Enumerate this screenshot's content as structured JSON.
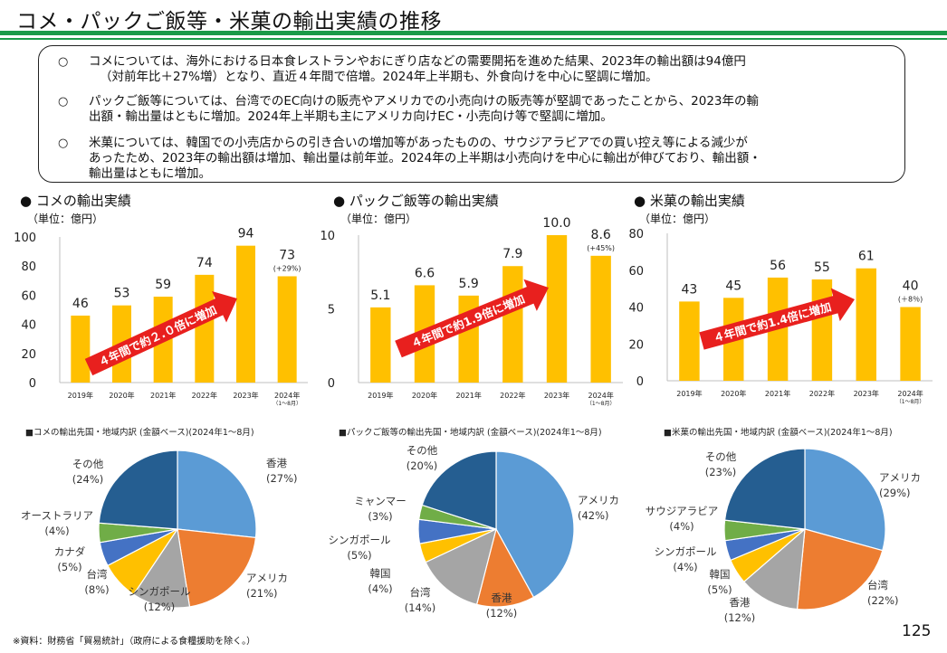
{
  "page": {
    "title": "コメ・パックご飯等・米菓の輸出実績の推移",
    "page_number": "125",
    "footer": "※資料：財務省「貿易統計」（政府による食糧援助を除く。）"
  },
  "bullets": [
    {
      "mark": "○",
      "lines": [
        "コメについては、海外における日本食レストランやおにぎり店などの需要開拓を進めた結果、2023年の輸出額は94億円",
        "（対前年比＋27%増）となり、直近４年間で倍増。2024年上半期も、外食向けを中心に堅調に増加。"
      ]
    },
    {
      "mark": "○",
      "lines": [
        "パックご飯等については、台湾でのEC向けの販売やアメリカでの小売向けの販売等が堅調であったことから、2023年の輸",
        "出額・輸出量はともに増加。2024年上半期も主にアメリカ向けEC・小売向け等で堅調に増加。"
      ]
    },
    {
      "mark": "○",
      "lines": [
        "米菓については、韓国での小売店からの引き合いの増加等があったものの、サウジアラビアでの買い控え等による減少が",
        "あったため、2023年の輸出額は増加、輸出量は前年並。2024年の上半期は小売向けを中心に輸出が伸びており、輸出額・",
        "輸出量はともに増加。"
      ]
    }
  ],
  "colors": {
    "bar": "#ffc000",
    "arrow": "#e8201e",
    "rule": "#1a9a48"
  },
  "chart_data": [
    {
      "type": "bar",
      "title": "● コメの輸出実績",
      "unit": "（単位：億円）",
      "categories": [
        "2019年",
        "2020年",
        "2021年",
        "2022年",
        "2023年",
        "2024年"
      ],
      "last_category_note": "（1～8月）",
      "values": [
        46,
        53,
        59,
        74,
        94,
        73
      ],
      "value_labels": [
        "46",
        "53",
        "59",
        "74",
        "94",
        "73"
      ],
      "last_value_note": "(+29%)",
      "yticks": [
        0,
        20,
        40,
        60,
        80,
        100
      ],
      "ylim": [
        0,
        100
      ],
      "arrow_label": "４年間で約２.０倍に増加"
    },
    {
      "type": "bar",
      "title": "● パックご飯等の輸出実績",
      "unit": "（単位：億円）",
      "categories": [
        "2019年",
        "2020年",
        "2021年",
        "2022年",
        "2023年",
        "2024年"
      ],
      "last_category_note": "（1～8月）",
      "values": [
        5.1,
        6.6,
        5.9,
        7.9,
        10.0,
        8.6
      ],
      "value_labels": [
        "5.1",
        "6.6",
        "5.9",
        "7.9",
        "10.0",
        "8.6"
      ],
      "last_value_note": "(+45%)",
      "yticks": [
        0,
        5,
        10
      ],
      "ylim": [
        0,
        10
      ],
      "arrow_label": "４年間で約1.9倍に増加"
    },
    {
      "type": "bar",
      "title": "● 米菓の輸出実績",
      "unit": "（単位：億円）",
      "categories": [
        "2019年",
        "2020年",
        "2021年",
        "2022年",
        "2023年",
        "2024年"
      ],
      "last_category_note": "（1～8月）",
      "values": [
        43,
        45,
        56,
        55,
        61,
        40
      ],
      "value_labels": [
        "43",
        "45",
        "56",
        "55",
        "61",
        "40"
      ],
      "last_value_note": "(＋8％)",
      "yticks": [
        0,
        20,
        40,
        60,
        80
      ],
      "ylim": [
        0,
        80
      ],
      "arrow_label": "４年間で約1.4倍に増加"
    },
    {
      "type": "pie",
      "title": "■コメの輸出先国・地域内訳 (金額ベース)(2024年1～8月)",
      "slices": [
        {
          "label": "香港",
          "pct": 27,
          "pct_label": "(27%)",
          "color": "#5b9bd5"
        },
        {
          "label": "アメリカ",
          "pct": 21,
          "pct_label": "(21%)",
          "color": "#ed7d31"
        },
        {
          "label": "シンガポール",
          "pct": 12,
          "pct_label": "(12%)",
          "color": "#a5a5a5"
        },
        {
          "label": "台湾",
          "pct": 8,
          "pct_label": "(8%)",
          "color": "#ffc000"
        },
        {
          "label": "カナダ",
          "pct": 5,
          "pct_label": "(5%)",
          "color": "#4472c4"
        },
        {
          "label": "オーストラリア",
          "pct": 4,
          "pct_label": "(4%)",
          "color": "#70ad47"
        },
        {
          "label": "その他",
          "pct": 24,
          "pct_label": "(24%)",
          "color": "#255e91"
        }
      ]
    },
    {
      "type": "pie",
      "title": "■パックご飯等の輸出先国・地域内訳 (金額ベース)(2024年1～8月)",
      "slices": [
        {
          "label": "アメリカ",
          "pct": 42,
          "pct_label": "(42%)",
          "color": "#5b9bd5"
        },
        {
          "label": "香港",
          "pct": 12,
          "pct_label": "(12%)",
          "color": "#ed7d31"
        },
        {
          "label": "台湾",
          "pct": 14,
          "pct_label": "(14%)",
          "color": "#a5a5a5"
        },
        {
          "label": "韓国",
          "pct": 4,
          "pct_label": "(4%)",
          "color": "#ffc000"
        },
        {
          "label": "シンガポール",
          "pct": 5,
          "pct_label": "(5%)",
          "color": "#4472c4"
        },
        {
          "label": "ミャンマー",
          "pct": 3,
          "pct_label": "(3%)",
          "color": "#70ad47"
        },
        {
          "label": "その他",
          "pct": 20,
          "pct_label": "(20%)",
          "color": "#255e91"
        }
      ]
    },
    {
      "type": "pie",
      "title": "■米菓の輸出先国・地域内訳 (金額ベース)(2024年1～8月)",
      "slices": [
        {
          "label": "アメリカ",
          "pct": 29,
          "pct_label": "(29%)",
          "color": "#5b9bd5"
        },
        {
          "label": "台湾",
          "pct": 22,
          "pct_label": "(22%)",
          "color": "#ed7d31"
        },
        {
          "label": "香港",
          "pct": 12,
          "pct_label": "(12%)",
          "color": "#a5a5a5"
        },
        {
          "label": "韓国",
          "pct": 5,
          "pct_label": "(5%)",
          "color": "#ffc000"
        },
        {
          "label": "シンガポール",
          "pct": 4,
          "pct_label": "(4%)",
          "color": "#4472c4"
        },
        {
          "label": "サウジアラビア",
          "pct": 4,
          "pct_label": "(4%)",
          "color": "#70ad47"
        },
        {
          "label": "その他",
          "pct": 23,
          "pct_label": "(23%)",
          "color": "#255e91"
        }
      ]
    }
  ]
}
